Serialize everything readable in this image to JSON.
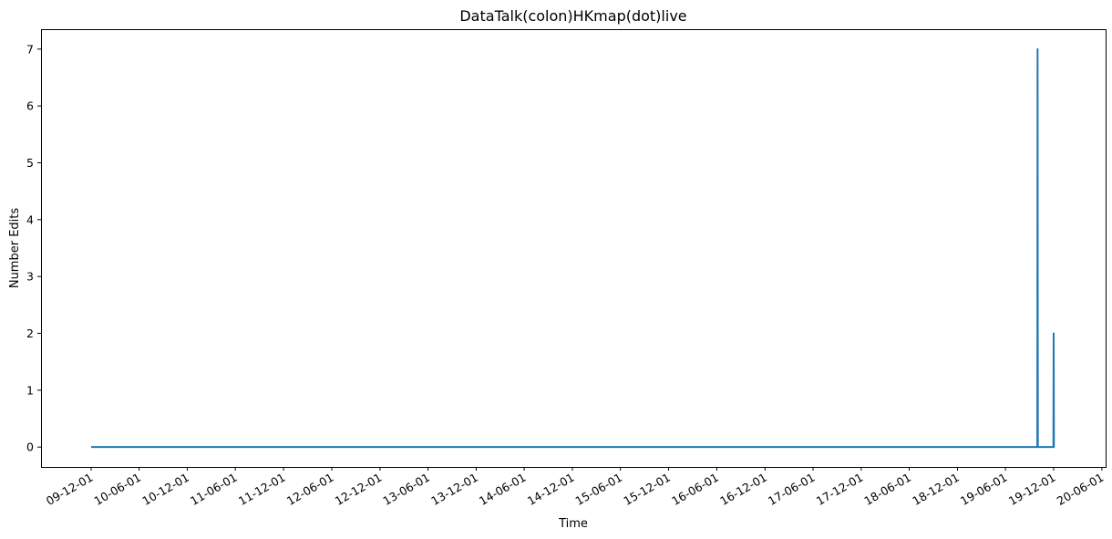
{
  "chart_data": {
    "type": "line",
    "title": "DataTalk(colon)HKmap(dot)live",
    "xlabel": "Time",
    "ylabel": "Number Edits",
    "x_tick_labels": [
      "09-12-01",
      "10-06-01",
      "10-12-01",
      "11-06-01",
      "11-12-01",
      "12-06-01",
      "12-12-01",
      "13-06-01",
      "13-12-01",
      "14-06-01",
      "14-12-01",
      "15-06-01",
      "15-12-01",
      "16-06-01",
      "16-12-01",
      "17-06-01",
      "17-12-01",
      "18-06-01",
      "18-12-01",
      "19-06-01",
      "19-12-01",
      "20-06-01"
    ],
    "y_ticks": [
      0,
      1,
      2,
      3,
      4,
      5,
      6,
      7
    ],
    "ylim": [
      -0.35,
      7.35
    ],
    "grid": false,
    "series": [
      {
        "color": "#1f77b4",
        "points": [
          {
            "x": "2009-12-01",
            "y": 0
          },
          {
            "x": "2019-09-30",
            "y": 0
          },
          {
            "x": "2019-10-01",
            "y": 7
          },
          {
            "x": "2019-10-02",
            "y": 0
          },
          {
            "x": "2019-11-30",
            "y": 0
          },
          {
            "x": "2019-12-01",
            "y": 2
          },
          {
            "x": "2019-12-02",
            "y": 0
          },
          {
            "x": "2019-12-05",
            "y": 0
          }
        ]
      }
    ]
  }
}
